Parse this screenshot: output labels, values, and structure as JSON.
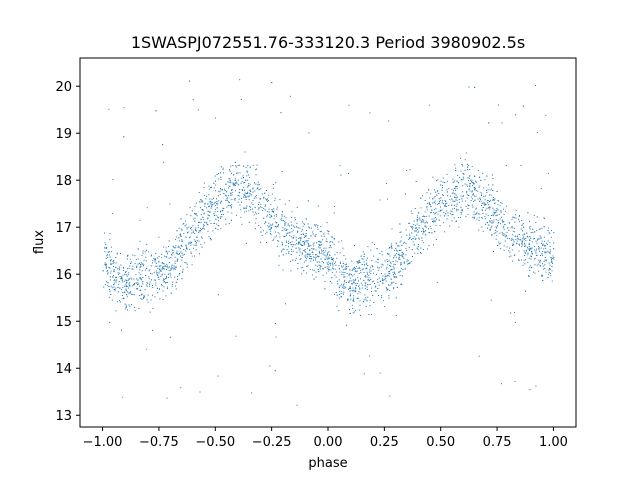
{
  "chart_data": {
    "type": "scatter",
    "title": "1SWASPJ072551.76-333120.3 Period 3980902.5s",
    "xlabel": "phase",
    "ylabel": "flux",
    "xlim": [
      -1.1,
      1.1
    ],
    "ylim": [
      12.75,
      20.6
    ],
    "xticks": [
      -1.0,
      -0.75,
      -0.5,
      -0.25,
      0.0,
      0.25,
      0.5,
      0.75,
      1.0
    ],
    "xtick_labels": [
      "−1.00",
      "−0.75",
      "−0.50",
      "−0.25",
      "0.00",
      "0.25",
      "0.50",
      "0.75",
      "1.00"
    ],
    "yticks": [
      13,
      14,
      15,
      16,
      17,
      18,
      19,
      20
    ],
    "ytick_labels": [
      "13",
      "14",
      "15",
      "16",
      "17",
      "18",
      "19",
      "20"
    ],
    "grid": false,
    "marker_color": "#1f77b4",
    "series": [
      {
        "phase_profile": [
          [
            0.0,
            16.4
          ],
          [
            0.05,
            15.9
          ],
          [
            0.1,
            15.8
          ],
          [
            0.15,
            15.9
          ],
          [
            0.2,
            16.0
          ],
          [
            0.25,
            16.0
          ],
          [
            0.3,
            16.2
          ],
          [
            0.35,
            16.6
          ],
          [
            0.4,
            16.9
          ],
          [
            0.45,
            17.3
          ],
          [
            0.5,
            17.5
          ],
          [
            0.55,
            17.7
          ],
          [
            0.6,
            17.9
          ],
          [
            0.65,
            17.7
          ],
          [
            0.7,
            17.5
          ],
          [
            0.75,
            17.2
          ],
          [
            0.8,
            16.9
          ],
          [
            0.85,
            16.8
          ],
          [
            0.9,
            16.6
          ],
          [
            0.95,
            16.5
          ],
          [
            1.0,
            16.4
          ]
        ],
        "scatter_sd": 0.45,
        "phase_range": [
          -1.0,
          1.0
        ]
      }
    ]
  },
  "colors": {
    "background": "#ffffff",
    "axes": "#000000",
    "points": "#1f77b4"
  }
}
